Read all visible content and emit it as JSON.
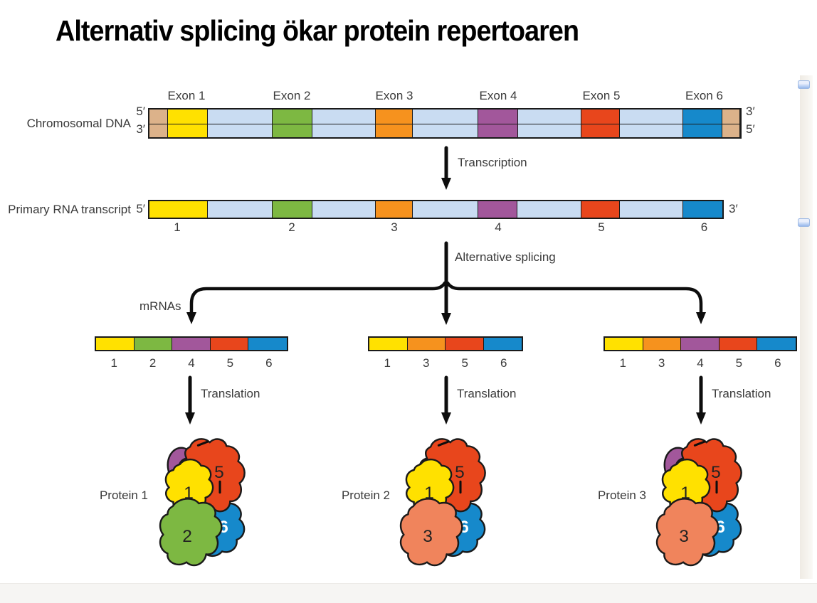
{
  "title": "Alternativ splicing ökar protein repertoaren",
  "dna": {
    "label": "Chromosomal DNA",
    "exon_labels": [
      "Exon 1",
      "Exon 2",
      "Exon 3",
      "Exon 4",
      "Exon 5",
      "Exon 6"
    ],
    "left_top_end": "5′",
    "left_bottom_end": "3′",
    "right_top_end": "3′",
    "right_bottom_end": "5′"
  },
  "rna": {
    "label": "Primary RNA transcript",
    "left_end": "5′",
    "right_end": "3′",
    "exon_numbers": [
      "1",
      "2",
      "3",
      "4",
      "5",
      "6"
    ]
  },
  "steps": {
    "transcription": "Transcription",
    "alternative_splicing": "Alternative splicing",
    "mrnas_label": "mRNAs",
    "translation": "Translation"
  },
  "mrnas": [
    {
      "exons": [
        "1",
        "2",
        "4",
        "5",
        "6"
      ]
    },
    {
      "exons": [
        "1",
        "3",
        "5",
        "6"
      ]
    },
    {
      "exons": [
        "1",
        "3",
        "4",
        "5",
        "6"
      ]
    }
  ],
  "proteins": [
    {
      "label": "Protein 1",
      "domains": [
        "1",
        "2",
        "4",
        "5",
        "6"
      ]
    },
    {
      "label": "Protein 2",
      "domains": [
        "1",
        "3",
        "5",
        "6"
      ]
    },
    {
      "label": "Protein 3",
      "domains": [
        "1",
        "3",
        "4",
        "5",
        "6"
      ]
    }
  ],
  "colors": {
    "exon_1": "#FFE100",
    "exon_2": "#7DB842",
    "exon_3": "#F6921E",
    "exon_4": "#A2579B",
    "exon_5": "#E8461C",
    "exon_6": "#1689CB",
    "intron": "#C9DCF2",
    "dna_end_cap": "#DCB28A",
    "protein_domain_3": "#F0845C",
    "outline": "#1A1A1A",
    "domain6_number": "#FFFFFF"
  }
}
